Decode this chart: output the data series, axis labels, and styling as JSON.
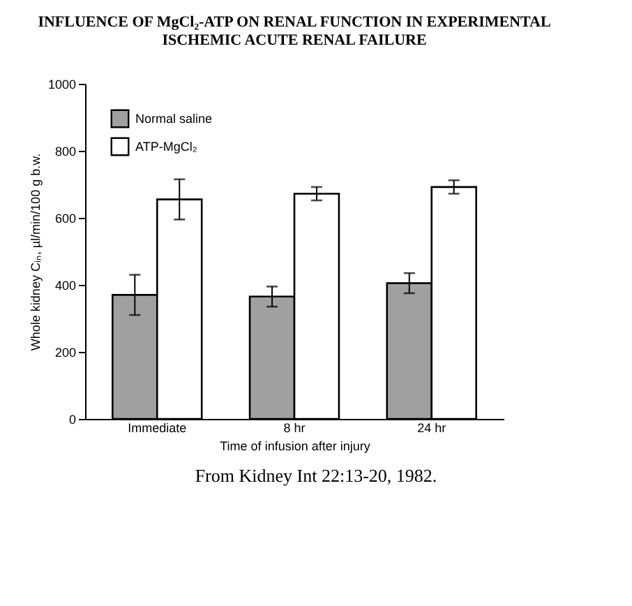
{
  "chart_data": {
    "type": "bar",
    "title": "INFLUENCE OF MgCl₂-ATP ON RENAL FUNCTION IN EXPERIMENTAL ISCHEMIC ACUTE RENAL FAILURE",
    "xlabel": "Time of infusion after injury",
    "ylabel": "Whole kidney Cᵢₙ, µl/min/100 g b.w.",
    "categories": [
      "Immediate",
      "8 hr",
      "24 hr"
    ],
    "series": [
      {
        "name": "Normal saline",
        "color": "#a0a0a0",
        "values": [
          370,
          365,
          405
        ],
        "errors": [
          60,
          30,
          30
        ]
      },
      {
        "name": "ATP-MgCl₂",
        "color": "#ffffff",
        "values": [
          655,
          672,
          692
        ],
        "errors": [
          60,
          20,
          20
        ]
      }
    ],
    "ylim": [
      0,
      1000
    ],
    "yticks": [
      0,
      200,
      400,
      600,
      800,
      1000
    ],
    "grid": false,
    "legend": "top left",
    "annotations": [
      "From Kidney Int 22:13-20, 1982."
    ]
  }
}
